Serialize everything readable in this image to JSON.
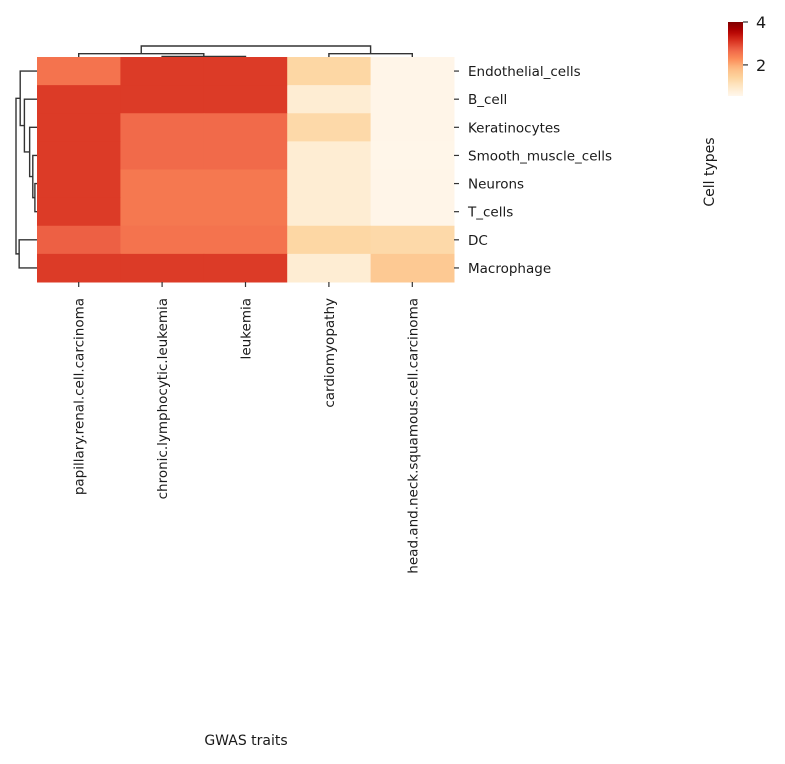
{
  "chart_data": {
    "type": "heatmap",
    "variant": "clustermap",
    "title": "",
    "xlabel": "GWAS traits",
    "ylabel": "Cell types",
    "colormap": "OrRd",
    "colormap_stops": [
      "#fff7ec",
      "#fee8c8",
      "#fdd49e",
      "#fdbb84",
      "#fc8d59",
      "#ef6548",
      "#d7301f",
      "#b30000",
      "#7f0000"
    ],
    "vmin": 0.55,
    "vmax": 4.0,
    "colorbar": {
      "ticks": [
        2,
        4
      ],
      "tick_labels": [
        "2",
        "4"
      ],
      "placement": "top-right"
    },
    "columns": [
      "papillary.renal.cell.carcinoma",
      "chronic.lymphocytic.leukemia",
      "leukemia",
      "cardiomyopathy",
      "head.and.neck.squamous.cell.carcinoma"
    ],
    "rows": [
      "Endothelial_cells",
      "B_cell",
      "Keratinocytes",
      "Smooth_muscle_cells",
      "Neurons",
      "T_cells",
      "DC",
      "Macrophage"
    ],
    "values": [
      [
        2.55,
        3.05,
        3.05,
        1.35,
        0.6
      ],
      [
        3.05,
        3.05,
        3.05,
        0.85,
        0.6
      ],
      [
        3.05,
        2.65,
        2.65,
        1.3,
        0.6
      ],
      [
        3.05,
        2.65,
        2.65,
        0.85,
        0.58
      ],
      [
        3.05,
        2.5,
        2.5,
        0.85,
        0.6
      ],
      [
        3.05,
        2.5,
        2.5,
        0.85,
        0.6
      ],
      [
        2.75,
        2.55,
        2.55,
        1.35,
        1.3
      ],
      [
        3.05,
        3.05,
        3.05,
        0.85,
        1.6
      ]
    ],
    "row_dendrogram": {
      "merges": [
        {
          "left": "Neurons",
          "right": "T_cells",
          "height": 0.1
        },
        {
          "left": "Smooth_muscle_cells",
          "right": "[Neurons,T_cells]",
          "height": 0.2
        },
        {
          "left": "Keratinocytes",
          "right": "[Smooth_muscle_cells..T_cells]",
          "height": 0.35
        },
        {
          "left": "B_cell",
          "right": "[Keratinocytes..T_cells]",
          "height": 0.6
        },
        {
          "left": "Endothelial_cells",
          "right": "[B_cell..T_cells]",
          "height": 0.8
        },
        {
          "left": "DC",
          "right": "Macrophage",
          "height": 0.85
        },
        {
          "left": "[Endothelial_cells..T_cells]",
          "right": "[DC,Macrophage]",
          "height": 1.0
        }
      ]
    },
    "col_dendrogram": {
      "merges": [
        {
          "left": "chronic.lymphocytic.leukemia",
          "right": "leukemia",
          "height": 0.05
        },
        {
          "left": "papillary.renal.cell.carcinoma",
          "right": "[chronic,leukemia]",
          "height": 0.3
        },
        {
          "left": "cardiomyopathy",
          "right": "head.and.neck.squamous.cell.carcinoma",
          "height": 0.3
        },
        {
          "left": "[papillary..leukemia]",
          "right": "[cardiomyopathy,head]",
          "height": 1.0
        }
      ]
    },
    "grid": false
  }
}
